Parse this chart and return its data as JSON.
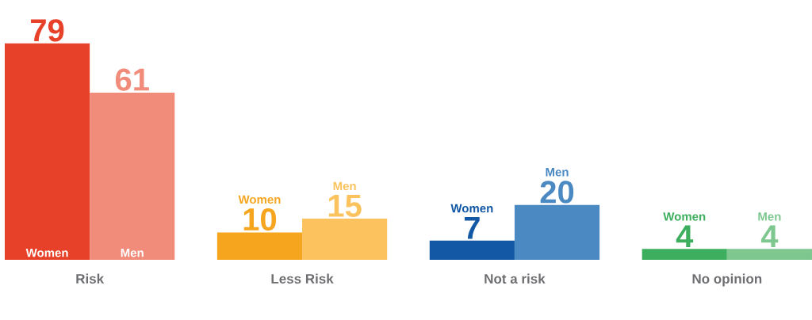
{
  "chart_data": {
    "type": "bar",
    "categories": [
      "Risk",
      "Less Risk",
      "Not a risk",
      "No opinion"
    ],
    "series": [
      {
        "name": "Women",
        "colors": [
          "#e8412a",
          "#f5a51e",
          "#1258a5",
          "#3dae5e"
        ],
        "values": [
          79,
          10,
          7,
          4
        ]
      },
      {
        "name": "Men",
        "colors": [
          "#f28c7a",
          "#fbc25e",
          "#4b89c3",
          "#7ec890"
        ],
        "values": [
          61,
          15,
          20,
          4
        ]
      }
    ],
    "data_labels": true
  }
}
